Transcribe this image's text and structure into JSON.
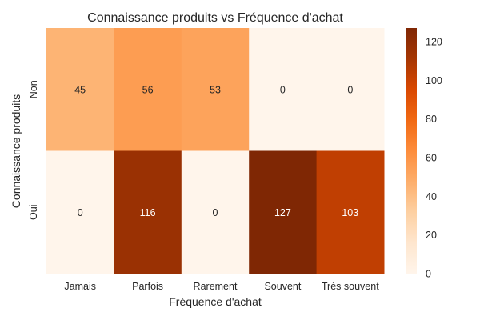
{
  "chart_data": {
    "type": "heatmap",
    "title": "Connaissance produits vs Fréquence d'achat",
    "xlabel": "Fréquence d'achat",
    "ylabel": "Connaissance produits",
    "x_categories": [
      "Jamais",
      "Parfois",
      "Rarement",
      "Souvent",
      "Très souvent"
    ],
    "y_categories": [
      "Non",
      "Oui"
    ],
    "values": [
      [
        45,
        56,
        53,
        0,
        0
      ],
      [
        0,
        116,
        0,
        127,
        103
      ]
    ],
    "colormap": "Oranges",
    "vmin": 0,
    "vmax": 127,
    "colorbar_ticks": [
      0,
      20,
      40,
      60,
      80,
      100,
      120
    ],
    "annotations": true
  }
}
